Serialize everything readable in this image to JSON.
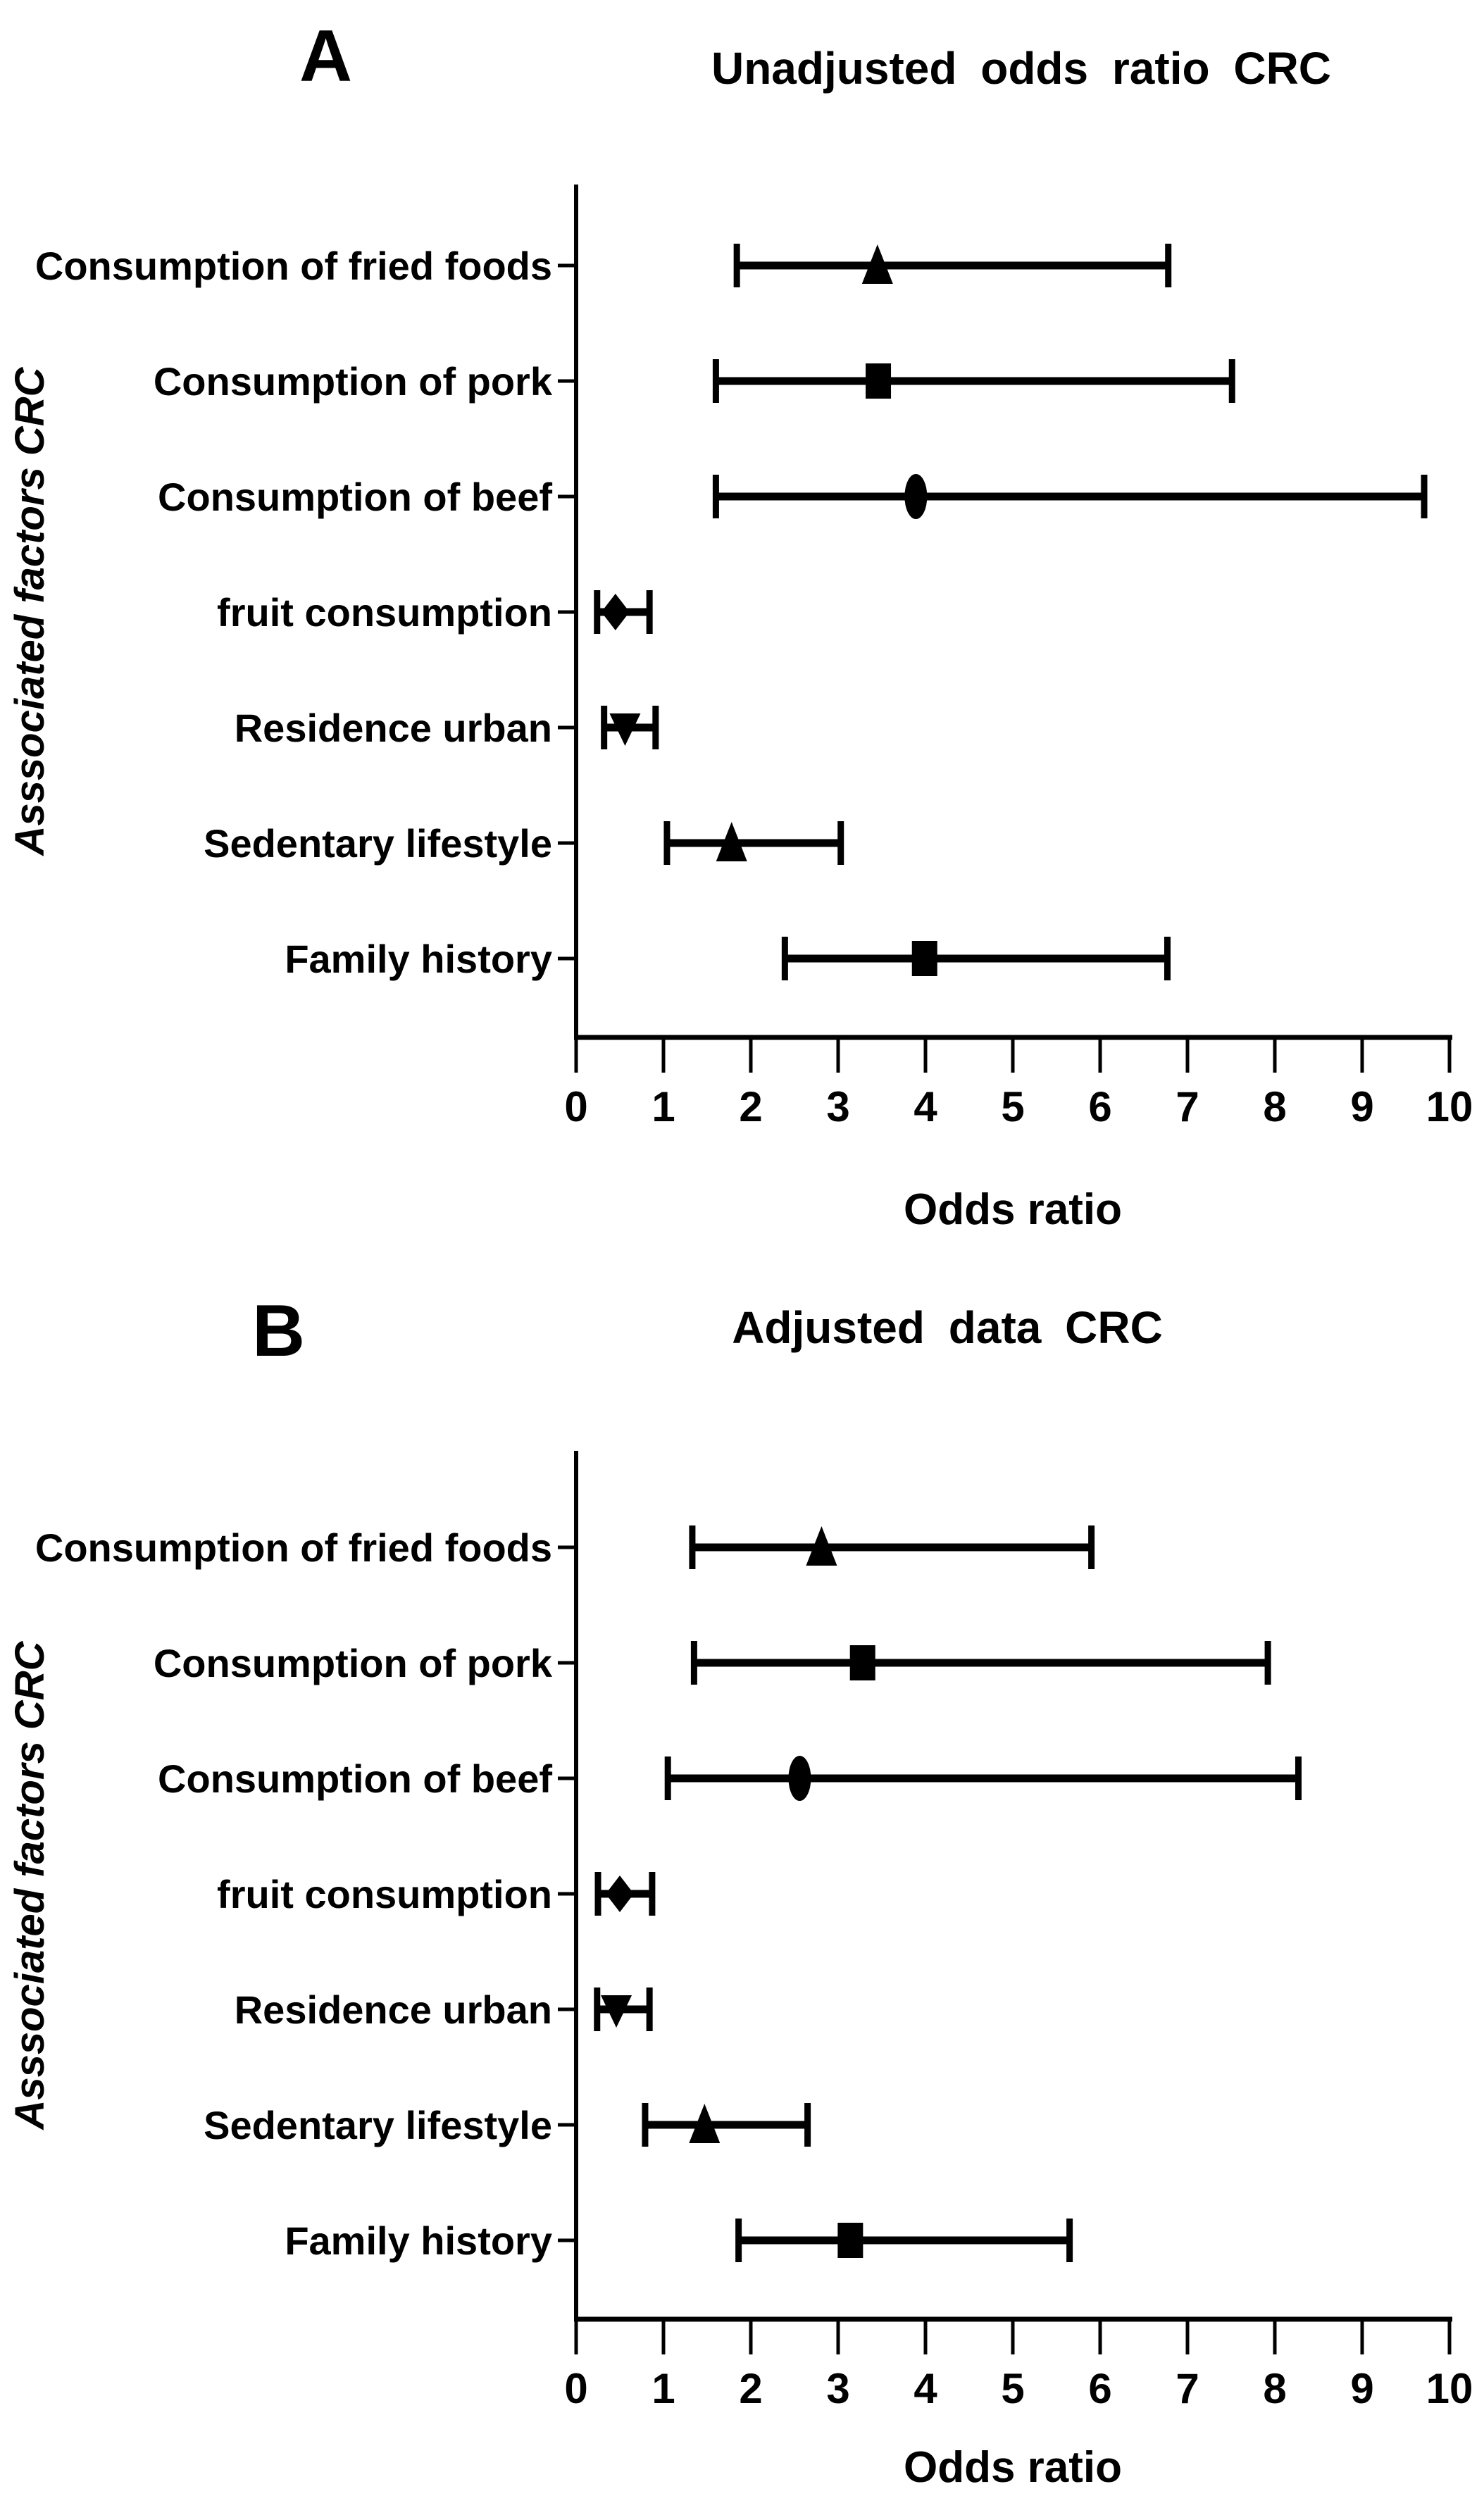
{
  "figure": {
    "background_color": "#ffffff",
    "ink_color": "#000000",
    "panels": [
      {
        "letter": "A",
        "title": "Unadjusted odds ratio CRC"
      },
      {
        "letter": "B",
        "title": "Adjusted data CRC"
      }
    ]
  },
  "chart_data": [
    {
      "type": "scatter",
      "subtype": "forest-plot-horizontal-error-bars",
      "panel_letter": "A",
      "title": "Unadjusted odds ratio CRC",
      "xlabel": "Odds ratio",
      "ylabel": "Asssociated factors CRC",
      "xlim": [
        0,
        10
      ],
      "xticks": [
        0,
        1,
        2,
        3,
        4,
        5,
        6,
        7,
        8,
        9,
        10
      ],
      "grid": false,
      "legend": "none",
      "categories": [
        "Consumption of fried foods",
        "Consumption of pork",
        "Consumption of beef",
        "fruit consumption",
        "Residence urban",
        "Sedentary lifestyle",
        "Family history"
      ],
      "points": [
        {
          "category": "Consumption of fried foods",
          "or": 3.45,
          "ci_low": 1.84,
          "ci_high": 6.78,
          "marker": "triangle-up-icon"
        },
        {
          "category": "Consumption of pork",
          "or": 3.46,
          "ci_low": 1.6,
          "ci_high": 7.51,
          "marker": "square-icon"
        },
        {
          "category": "Consumption of beef",
          "or": 3.89,
          "ci_low": 1.6,
          "ci_high": 9.71,
          "marker": "circle-icon"
        },
        {
          "category": "fruit consumption",
          "or": 0.45,
          "ci_low": 0.24,
          "ci_high": 0.84,
          "marker": "diamond-icon"
        },
        {
          "category": "Residence urban",
          "or": 0.56,
          "ci_low": 0.32,
          "ci_high": 0.91,
          "marker": "triangle-down-icon"
        },
        {
          "category": "Sedentary lifestyle",
          "or": 1.78,
          "ci_low": 1.04,
          "ci_high": 3.03,
          "marker": "triangle-up-icon"
        },
        {
          "category": "Family history",
          "or": 3.99,
          "ci_low": 2.39,
          "ci_high": 6.77,
          "marker": "square-icon"
        }
      ]
    },
    {
      "type": "scatter",
      "subtype": "forest-plot-horizontal-error-bars",
      "panel_letter": "B",
      "title": "Adjusted data CRC",
      "xlabel": "Odds ratio",
      "ylabel": "Asssociated factors CRC",
      "xlim": [
        0,
        10
      ],
      "xticks": [
        0,
        1,
        2,
        3,
        4,
        5,
        6,
        7,
        8,
        9,
        10
      ],
      "grid": false,
      "legend": "none",
      "categories": [
        "Consumption of fried foods",
        "Consumption of pork",
        "Consumption of beef",
        "fruit consumption",
        "Residence urban",
        "Sedentary lifestyle",
        "Family history"
      ],
      "points": [
        {
          "category": "Consumption of fried foods",
          "or": 2.81,
          "ci_low": 1.33,
          "ci_high": 5.9,
          "marker": "triangle-up-icon"
        },
        {
          "category": "Consumption of pork",
          "or": 3.28,
          "ci_low": 1.35,
          "ci_high": 7.92,
          "marker": "square-icon"
        },
        {
          "category": "Consumption of beef",
          "or": 2.56,
          "ci_low": 1.05,
          "ci_high": 8.27,
          "marker": "circle-icon"
        },
        {
          "category": "fruit consumption",
          "or": 0.5,
          "ci_low": 0.25,
          "ci_high": 0.87,
          "marker": "diamond-icon"
        },
        {
          "category": "Residence urban",
          "or": 0.46,
          "ci_low": 0.24,
          "ci_high": 0.84,
          "marker": "triangle-down-icon"
        },
        {
          "category": "Sedentary lifestyle",
          "or": 1.47,
          "ci_low": 0.79,
          "ci_high": 2.65,
          "marker": "triangle-up-icon"
        },
        {
          "category": "Family history",
          "or": 3.14,
          "ci_low": 1.86,
          "ci_high": 5.65,
          "marker": "square-icon"
        }
      ]
    }
  ]
}
